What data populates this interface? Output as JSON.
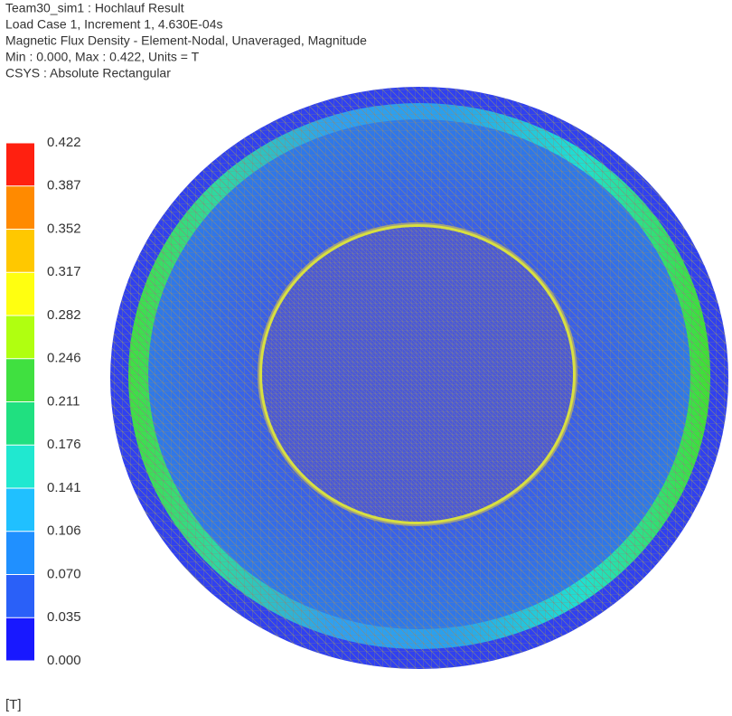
{
  "header": {
    "lines": [
      "Team30_sim1 : Hochlauf Result",
      "Load Case 1, Increment 1, 4.630E-04s",
      "Magnetic Flux Density - Element-Nodal, Unaveraged, Magnitude",
      "Min : 0.000, Max : 0.422, Units = T",
      "CSYS : Absolute Rectangular"
    ]
  },
  "legend": {
    "labels": [
      "0.422",
      "0.387",
      "0.352",
      "0.317",
      "0.282",
      "0.246",
      "0.211",
      "0.176",
      "0.141",
      "0.106",
      "0.070",
      "0.035",
      "0.000"
    ],
    "unit": "[T]"
  }
}
